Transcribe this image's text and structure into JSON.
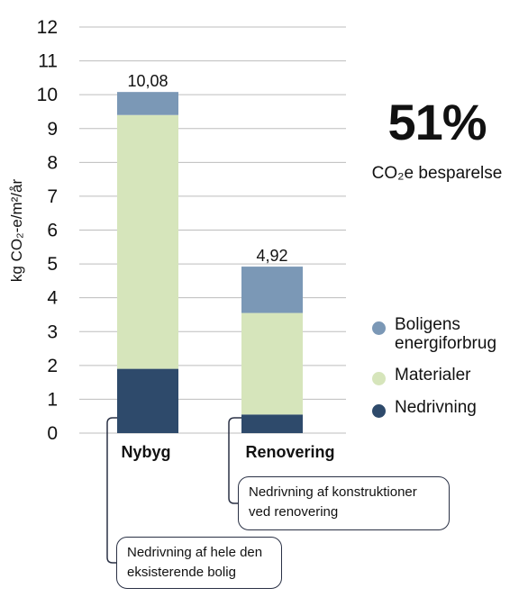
{
  "chart_data": {
    "type": "bar",
    "stacked": true,
    "categories": [
      "Nybyg",
      "Renovering"
    ],
    "series": [
      {
        "name": "Nedrivning",
        "color": "#2e4a6b",
        "values": [
          1.9,
          0.55
        ]
      },
      {
        "name": "Materialer",
        "color": "#d6e5bb",
        "values": [
          7.5,
          3.0
        ]
      },
      {
        "name": "Boligens energiforbrug",
        "color": "#7b98b6",
        "values": [
          0.68,
          1.37
        ]
      }
    ],
    "totals": [
      "10,08",
      "4,92"
    ],
    "ylabel": "kg CO₂-e/m²/år",
    "ylim": [
      0,
      12
    ],
    "yticks": [
      0,
      1,
      2,
      3,
      4,
      5,
      6,
      7,
      8,
      9,
      10,
      11,
      12
    ],
    "grid": true,
    "legend_position": "right",
    "legend": [
      "Boligens energiforbrug",
      "Materialer",
      "Nedrivning"
    ],
    "annotations": [
      {
        "text": "Nedrivning af hele den eksisterende bolig",
        "category": "Nybyg"
      },
      {
        "text": "Nedrivning af konstruktioner ved renovering",
        "category": "Renovering"
      }
    ]
  },
  "kpi": {
    "value": "51%",
    "label": "CO₂e besparelse"
  },
  "legend_items": [
    {
      "label": "Boligens energiforbrug",
      "color": "#7b98b6"
    },
    {
      "label": "Materialer",
      "color": "#d6e5bb"
    },
    {
      "label": "Nedrivning",
      "color": "#2e4a6b"
    }
  ],
  "categories_display": [
    "Nybyg",
    "Renovering"
  ],
  "callouts": [
    {
      "text": "Nedrivning af hele den eksisterende bolig"
    },
    {
      "text": "Nedrivning af konstruktioner ved renovering"
    }
  ]
}
